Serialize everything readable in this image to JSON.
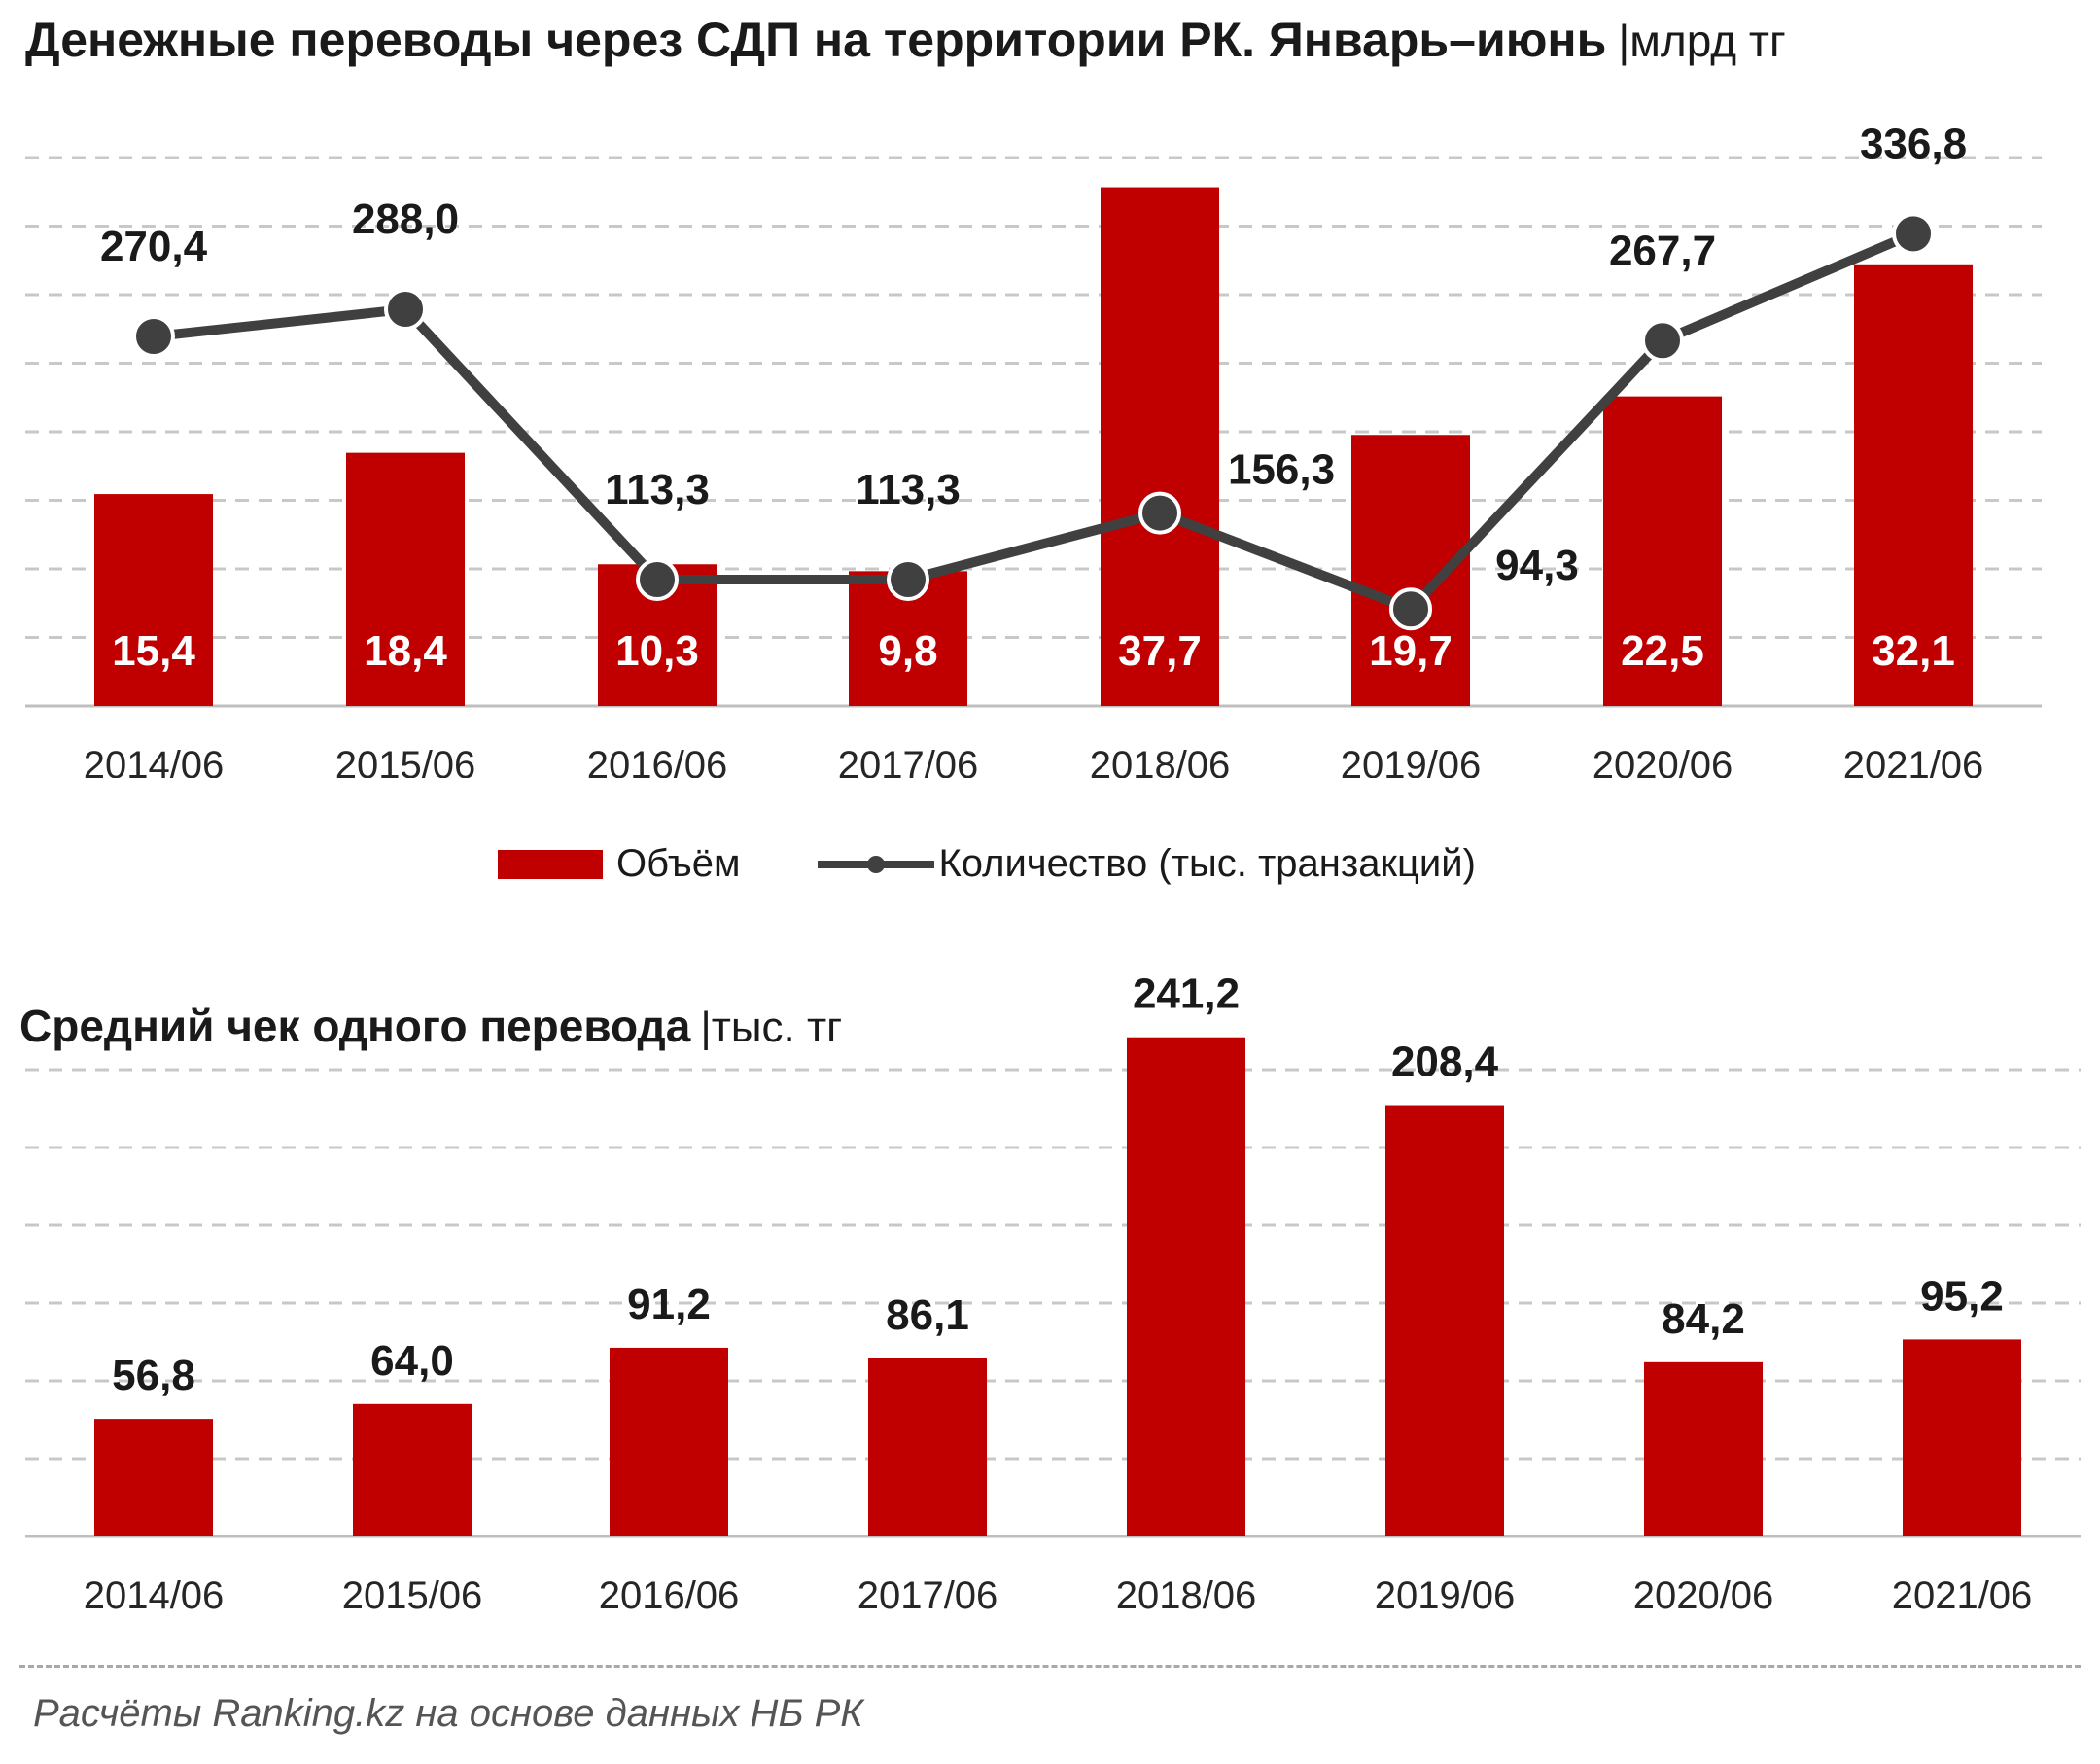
{
  "title": "Денежные переводы через СДП на территории РК. Январь–июнь",
  "title_unit": "|млрд тг",
  "legend": {
    "bar_label": "Объём",
    "line_label": "Количество (тыс. транзакций)"
  },
  "subtitle": "Средний чек одного перевода",
  "subtitle_unit": "|тыс. тг",
  "source": "Расчёты Ranking.kz на основе данных НБ РК",
  "colors": {
    "bar": "#c00000",
    "line": "#404040",
    "grid": "#c8c8c8"
  },
  "chart_data": [
    {
      "type": "bar+line",
      "categories": [
        "2014/06",
        "2015/06",
        "2016/06",
        "2017/06",
        "2018/06",
        "2019/06",
        "2020/06",
        "2021/06"
      ],
      "series": [
        {
          "name": "Объём",
          "type": "bar",
          "values": [
            15.4,
            18.4,
            10.3,
            9.8,
            37.7,
            19.7,
            22.5,
            32.1
          ],
          "labels": [
            "15,4",
            "18,4",
            "10,3",
            "9,8",
            "37,7",
            "19,7",
            "22,5",
            "32,1"
          ]
        },
        {
          "name": "Количество (тыс. транзакций)",
          "type": "line",
          "values": [
            270.4,
            288.0,
            113.3,
            113.3,
            156.3,
            94.3,
            267.7,
            336.8
          ],
          "labels": [
            "270,4",
            "288,0",
            "113,3",
            "113,3",
            "156,3",
            "94,3",
            "267,7",
            "336,8"
          ]
        }
      ],
      "bar_ylim": [
        0,
        40
      ],
      "line_ylim": [
        -200,
        380
      ],
      "grid": true
    },
    {
      "type": "bar",
      "categories": [
        "2014/06",
        "2015/06",
        "2016/06",
        "2017/06",
        "2018/06",
        "2019/06",
        "2020/06",
        "2021/06"
      ],
      "values": [
        56.8,
        64.0,
        91.2,
        86.1,
        241.2,
        208.4,
        84.2,
        95.2
      ],
      "labels": [
        "56,8",
        "64,0",
        "91,2",
        "86,1",
        "241,2",
        "208,4",
        "84,2",
        "95,2"
      ],
      "ylim": [
        0,
        300
      ],
      "grid": true
    }
  ]
}
